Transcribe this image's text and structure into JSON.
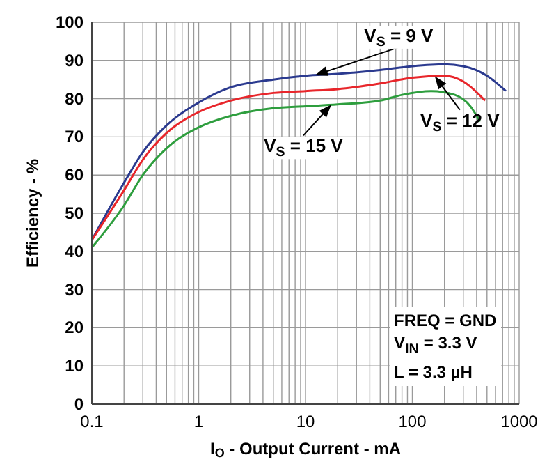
{
  "chart_data": {
    "type": "line",
    "xlabel": "I$_{O}$ - Output Current - mA",
    "ylabel": "Efficiency - %",
    "log": "x",
    "grid": true,
    "marker": "none",
    "line_style": "solid",
    "xlim": [
      0.1,
      1000
    ],
    "ylim": [
      0,
      100
    ],
    "xticks": [
      0.1,
      {
        "value": 0.2,
        "label": null
      },
      {
        "value": 0.3,
        "label": null
      },
      {
        "value": 0.4,
        "label": null
      },
      {
        "value": 0.5,
        "label": null
      },
      {
        "value": 0.6,
        "label": null
      },
      {
        "value": 0.7,
        "label": null
      },
      {
        "value": 0.8,
        "label": null
      },
      {
        "value": 0.9,
        "label": null
      },
      1,
      {
        "value": 2,
        "label": null
      },
      {
        "value": 3,
        "label": null
      },
      {
        "value": 4,
        "label": null
      },
      {
        "value": 5,
        "label": null
      },
      {
        "value": 6,
        "label": null
      },
      {
        "value": 7,
        "label": null
      },
      {
        "value": 8,
        "label": null
      },
      {
        "value": 9,
        "label": null
      },
      10,
      {
        "value": 20,
        "label": null
      },
      {
        "value": 30,
        "label": null
      },
      {
        "value": 40,
        "label": null
      },
      {
        "value": 50,
        "label": null
      },
      {
        "value": 60,
        "label": null
      },
      {
        "value": 70,
        "label": null
      },
      {
        "value": 80,
        "label": null
      },
      {
        "value": 90,
        "label": null
      },
      100,
      {
        "value": 200,
        "label": null
      },
      {
        "value": 300,
        "label": null
      },
      {
        "value": 400,
        "label": null
      },
      {
        "value": 500,
        "label": null
      },
      {
        "value": 600,
        "label": null
      },
      {
        "value": 700,
        "label": null
      },
      {
        "value": 800,
        "label": null
      },
      {
        "value": 900,
        "label": null
      },
      1000
    ],
    "yticks": [
      0,
      10,
      20,
      30,
      40,
      50,
      60,
      70,
      80,
      90,
      100
    ],
    "series": [
      {
        "name": "V$_{S}$ = 9 V",
        "color": "#2b3a8f",
        "x": [
          0.1,
          0.2,
          0.3,
          0.5,
          1,
          2,
          5,
          10,
          20,
          50,
          100,
          200,
          300,
          500,
          750
        ],
        "values": [
          43,
          58,
          66,
          73,
          79,
          83,
          85,
          86,
          86.5,
          87.5,
          88.5,
          89,
          88.5,
          86,
          82
        ]
      },
      {
        "name": "V$_{S}$ = 12 V",
        "color": "#e8262b",
        "x": [
          0.1,
          0.2,
          0.3,
          0.5,
          1,
          2,
          5,
          10,
          20,
          50,
          100,
          200,
          300,
          480
        ],
        "values": [
          43,
          56,
          64,
          71,
          76.5,
          79.5,
          81.5,
          82,
          82.5,
          84,
          85.5,
          86,
          84.5,
          79.5
        ]
      },
      {
        "name": "V$_{S}$ = 15 V",
        "color": "#2e9e3e",
        "x": [
          0.1,
          0.2,
          0.3,
          0.5,
          1,
          2,
          5,
          10,
          20,
          50,
          80,
          150,
          250,
          350,
          430
        ],
        "values": [
          41,
          52,
          60,
          67,
          72.5,
          75.5,
          77.5,
          78,
          78.5,
          79.5,
          81,
          82,
          81,
          78,
          74
        ]
      }
    ],
    "annotations": [
      "FREQ = GND",
      "V$_{IN}$ = 3.3 V",
      "L = 3.3 µH"
    ]
  }
}
